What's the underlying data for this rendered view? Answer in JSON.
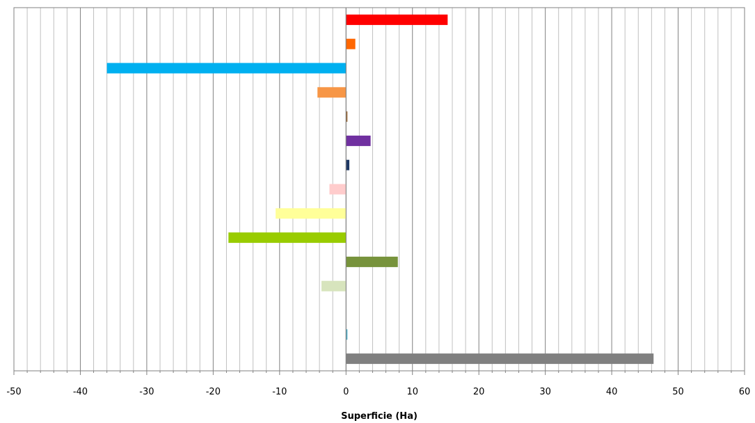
{
  "chart_data": {
    "type": "bar",
    "orientation": "horizontal",
    "title": "",
    "xlabel": "Superficie (Ha)",
    "ylabel": "",
    "xlim": [
      -50,
      60
    ],
    "x_major_step": 10,
    "x_minor_step": 2,
    "grid": true,
    "legend": "none",
    "bars": [
      {
        "value": 15.3,
        "color": "#FF0000"
      },
      {
        "value": 1.4,
        "color": "#FF6600"
      },
      {
        "value": -36.0,
        "color": "#00B0F0"
      },
      {
        "value": -4.3,
        "color": "#F79646"
      },
      {
        "value": 0.2,
        "color": "#996633"
      },
      {
        "value": 3.7,
        "color": "#7030A0"
      },
      {
        "value": 0.5,
        "color": "#1F3864"
      },
      {
        "value": -2.5,
        "color": "#FFCCCC"
      },
      {
        "value": -10.6,
        "color": "#FFFF99"
      },
      {
        "value": -17.7,
        "color": "#99CC00"
      },
      {
        "value": 7.8,
        "color": "#77933C"
      },
      {
        "value": -3.7,
        "color": "#D7E4BD"
      },
      {
        "value": 0.0,
        "color": "#FFFFFF"
      },
      {
        "value": 0.1,
        "color": "#4BACC6"
      },
      {
        "value": 46.3,
        "color": "#808080"
      }
    ]
  }
}
